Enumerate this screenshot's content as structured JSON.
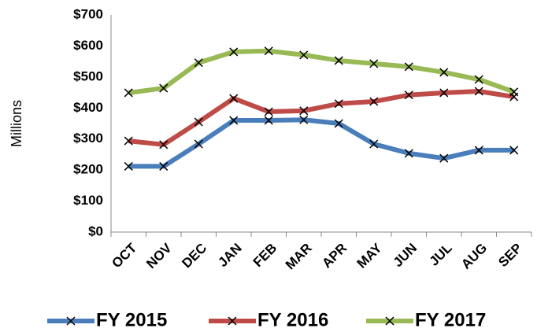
{
  "chart_data": {
    "type": "line",
    "y_label": "Millions",
    "categories": [
      "OCT",
      "NOV",
      "DEC",
      "JAN",
      "FEB",
      "MAR",
      "APR",
      "MAY",
      "JUN",
      "JUL",
      "AUG",
      "SEP"
    ],
    "series": [
      {
        "name": "FY 2015",
        "color": "#4a7ebb",
        "values": [
          212,
          212,
          284,
          360,
          360,
          362,
          350,
          284,
          254,
          238,
          264,
          264
        ]
      },
      {
        "name": "FY 2016",
        "color": "#be4b48",
        "values": [
          294,
          282,
          355,
          431,
          388,
          391,
          414,
          421,
          442,
          449,
          454,
          436
        ]
      },
      {
        "name": "FY 2017",
        "color": "#98b954",
        "values": [
          449,
          464,
          546,
          581,
          584,
          571,
          553,
          543,
          533,
          515,
          492,
          452
        ]
      }
    ],
    "ylim": [
      0,
      700
    ],
    "yticks": [
      {
        "value": 0,
        "label": "$0"
      },
      {
        "value": 100,
        "label": "$100"
      },
      {
        "value": 200,
        "label": "$200"
      },
      {
        "value": 300,
        "label": "$300"
      },
      {
        "value": 400,
        "label": "$400"
      },
      {
        "value": 500,
        "label": "$500"
      },
      {
        "value": 600,
        "label": "$600"
      },
      {
        "value": 700,
        "label": "$700"
      }
    ],
    "grid": false,
    "legend": "bottom"
  }
}
